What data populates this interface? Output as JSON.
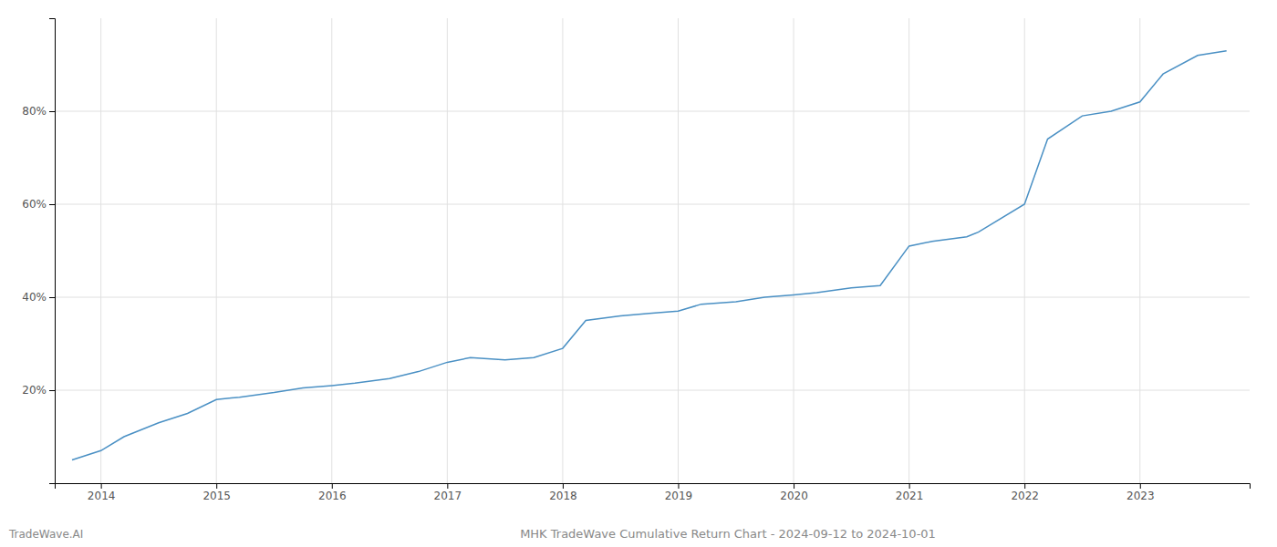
{
  "chart_data": {
    "type": "line",
    "title": "MHK TradeWave Cumulative Return Chart - 2024-09-12 to 2024-10-01",
    "annotations": [
      "TradeWave.AI"
    ],
    "x": [
      2013.75,
      2014.0,
      2014.2,
      2014.5,
      2014.75,
      2015.0,
      2015.2,
      2015.5,
      2015.75,
      2016.0,
      2016.2,
      2016.5,
      2016.75,
      2017.0,
      2017.2,
      2017.5,
      2017.75,
      2018.0,
      2018.2,
      2018.5,
      2018.75,
      2019.0,
      2019.2,
      2019.5,
      2019.75,
      2020.0,
      2020.2,
      2020.5,
      2020.75,
      2021.0,
      2021.2,
      2021.5,
      2021.6,
      2022.0,
      2022.2,
      2022.5,
      2022.75,
      2023.0,
      2023.2,
      2023.5,
      2023.75
    ],
    "values": [
      5,
      7,
      10,
      13,
      15,
      18,
      18.5,
      19.5,
      20.5,
      21,
      21.5,
      22.5,
      24,
      26,
      27,
      26.5,
      27,
      29,
      35,
      36,
      36.5,
      37,
      38.5,
      39,
      40,
      40.5,
      41,
      42,
      42.5,
      51,
      52,
      53,
      54,
      60,
      74,
      79,
      80,
      82,
      88,
      92,
      93
    ],
    "color": "#4a90c4",
    "xlim": [
      2013.6,
      2023.95
    ],
    "xticks": [
      2014,
      2015,
      2016,
      2017,
      2018,
      2019,
      2020,
      2021,
      2022,
      2023
    ],
    "ylim": [
      0,
      100
    ],
    "yticks": [
      {
        "value": 20,
        "label": "20%"
      },
      {
        "value": 40,
        "label": "40%"
      },
      {
        "value": 60,
        "label": "60%"
      },
      {
        "value": 80,
        "label": "80%"
      }
    ],
    "grid": true
  }
}
